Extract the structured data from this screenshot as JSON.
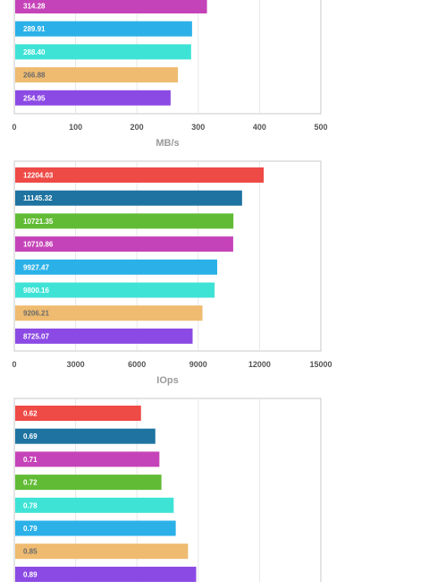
{
  "chart_data": [
    {
      "type": "bar",
      "orientation": "horizontal",
      "xlabel": "MB/s",
      "xlim": [
        0,
        500
      ],
      "xticks": [
        "0",
        "100",
        "200",
        "300",
        "400",
        "500"
      ],
      "grid": true,
      "bars": [
        {
          "value": 314.28,
          "label": "314.28",
          "color": "#c543b8"
        },
        {
          "value": 289.91,
          "label": "289.91",
          "color": "#2bb1e8"
        },
        {
          "value": 288.4,
          "label": "288.40",
          "color": "#3fe3d6"
        },
        {
          "value": 266.88,
          "label": "266.88",
          "color": "#eebb70"
        },
        {
          "value": 254.95,
          "label": "254.95",
          "color": "#8c4ae4"
        }
      ]
    },
    {
      "type": "bar",
      "orientation": "horizontal",
      "xlabel": "IOps",
      "xlim": [
        0,
        15000
      ],
      "xticks": [
        "0",
        "3000",
        "6000",
        "9000",
        "12000",
        "15000"
      ],
      "grid": true,
      "bars": [
        {
          "value": 12204.03,
          "label": "12204.03",
          "color": "#ee4a46"
        },
        {
          "value": 11145.32,
          "label": "11145.32",
          "color": "#1e73a0"
        },
        {
          "value": 10721.35,
          "label": "10721.35",
          "color": "#62bb35"
        },
        {
          "value": 10710.86,
          "label": "10710.86",
          "color": "#c543b8"
        },
        {
          "value": 9927.47,
          "label": "9927.47",
          "color": "#2bb1e8"
        },
        {
          "value": 9800.16,
          "label": "9800.16",
          "color": "#3fe3d6"
        },
        {
          "value": 9206.21,
          "label": "9206.21",
          "color": "#eebb70"
        },
        {
          "value": 8725.07,
          "label": "8725.07",
          "color": "#8c4ae4"
        }
      ]
    },
    {
      "type": "bar",
      "orientation": "horizontal",
      "xlim": [
        0,
        1.5
      ],
      "grid": true,
      "bars": [
        {
          "value": 0.62,
          "label": "0.62",
          "color": "#ee4a46"
        },
        {
          "value": 0.69,
          "label": "0.69",
          "color": "#1e73a0"
        },
        {
          "value": 0.71,
          "label": "0.71",
          "color": "#c543b8"
        },
        {
          "value": 0.72,
          "label": "0.72",
          "color": "#62bb35"
        },
        {
          "value": 0.78,
          "label": "0.78",
          "color": "#3fe3d6"
        },
        {
          "value": 0.79,
          "label": "0.79",
          "color": "#2bb1e8"
        },
        {
          "value": 0.85,
          "label": "0.85",
          "color": "#eebb70"
        },
        {
          "value": 0.89,
          "label": "0.89",
          "color": "#8c4ae4"
        }
      ]
    }
  ]
}
